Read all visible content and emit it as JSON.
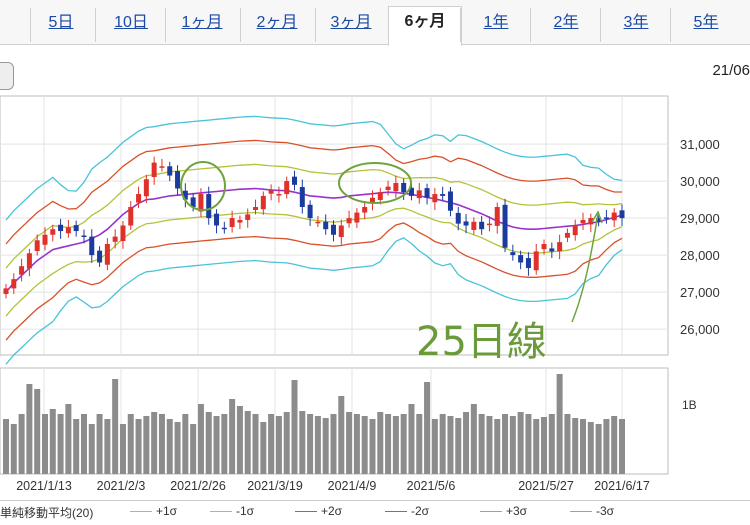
{
  "tabs": [
    {
      "label": "5日",
      "active": false
    },
    {
      "label": "10日",
      "active": false
    },
    {
      "label": "1ヶ月",
      "active": false
    },
    {
      "label": "2ヶ月",
      "active": false
    },
    {
      "label": "3ヶ月",
      "active": false
    },
    {
      "label": "6ヶ月",
      "active": true
    },
    {
      "label": "1年",
      "active": false
    },
    {
      "label": "2年",
      "active": false
    },
    {
      "label": "3年",
      "active": false
    },
    {
      "label": "5年",
      "active": false
    }
  ],
  "header_date": "21/06",
  "annotation": {
    "text": "25日線",
    "color": "#6a9a3a"
  },
  "legend": [
    {
      "label": "単純移動平均(20)",
      "color": "#9932cc"
    },
    {
      "label": "+1σ",
      "color": "#b5c23a"
    },
    {
      "label": "-1σ",
      "color": "#b5c23a"
    },
    {
      "label": "+2σ",
      "color": "#d9502a"
    },
    {
      "label": "-2σ",
      "color": "#d9502a"
    },
    {
      "label": "+3σ",
      "color": "#49c3d8"
    },
    {
      "label": "-3σ",
      "color": "#49c3d8"
    }
  ],
  "chart_data": {
    "type": "candlestick",
    "price_axis": {
      "ticks": [
        26000,
        27000,
        28000,
        29000,
        30000,
        31000
      ],
      "tick_labels": [
        "26,000",
        "27,000",
        "28,000",
        "29,000",
        "30,000",
        "31,000"
      ],
      "range": [
        25300,
        32300
      ]
    },
    "volume_axis": {
      "tick_label": "1B"
    },
    "x_tick_labels": [
      "2021/1/13",
      "2021/2/3",
      "2021/2/26",
      "2021/3/19",
      "2021/4/9",
      "2021/5/6",
      "2021/5/27",
      "2021/6/17"
    ],
    "up_color": "#e0302a",
    "down_color": "#1c3b9e",
    "series_sma": [
      27000,
      27250,
      27450,
      27650,
      27850,
      28000,
      28150,
      28200,
      28250,
      28300,
      28350,
      28450,
      28550,
      28700,
      28900,
      29100,
      29250,
      29400,
      29500,
      29520,
      29560,
      29600,
      29620,
      29640,
      29660,
      29680,
      29700,
      29720,
      29740,
      29760,
      29780,
      29790,
      29800,
      29780,
      29760,
      29750,
      29740,
      29700,
      29650,
      29600,
      29580,
      29560,
      29540,
      29560,
      29600,
      29620,
      29640,
      29660,
      29680,
      29700,
      29690,
      29670,
      29640,
      29600,
      29560,
      29520,
      29470,
      29420,
      29360,
      29280,
      29200,
      29120,
      29020,
      28920,
      28830,
      28760,
      28720,
      28700,
      28700,
      28720,
      28740,
      28760,
      28780,
      28800,
      28830,
      28870,
      28900,
      28960,
      29020,
      29080
    ],
    "closes": [
      27100,
      27350,
      27700,
      28050,
      28400,
      28550,
      28700,
      28650,
      28750,
      28650,
      28500,
      28000,
      27800,
      28300,
      28500,
      28800,
      29300,
      29650,
      30050,
      30500,
      30400,
      30150,
      29800,
      29500,
      29300,
      29650,
      29000,
      28800,
      28700,
      29000,
      28950,
      29100,
      29300,
      29600,
      29750,
      29650,
      30000,
      29900,
      29300,
      29000,
      28900,
      28700,
      28550,
      28800,
      29000,
      29150,
      29300,
      29550,
      29700,
      29850,
      29950,
      29700,
      29600,
      29750,
      29550,
      29650,
      29600,
      29200,
      28850,
      28800,
      28900,
      28700,
      28850,
      29300,
      28200,
      28000,
      27800,
      27650,
      28100,
      28300,
      28100,
      28350,
      28600,
      28800,
      28950,
      29000,
      28900,
      29000,
      29150,
      29000
    ],
    "volume_rel": [
      0.55,
      0.5,
      0.6,
      0.9,
      0.85,
      0.6,
      0.65,
      0.6,
      0.7,
      0.55,
      0.6,
      0.5,
      0.6,
      0.55,
      0.95,
      0.5,
      0.6,
      0.55,
      0.58,
      0.62,
      0.6,
      0.55,
      0.52,
      0.6,
      0.5,
      0.7,
      0.62,
      0.58,
      0.6,
      0.75,
      0.68,
      0.63,
      0.6,
      0.52,
      0.6,
      0.58,
      0.62,
      0.94,
      0.63,
      0.6,
      0.58,
      0.56,
      0.6,
      0.78,
      0.62,
      0.6,
      0.58,
      0.55,
      0.62,
      0.6,
      0.58,
      0.6,
      0.7,
      0.6,
      0.92,
      0.55,
      0.6,
      0.58,
      0.56,
      0.62,
      0.7,
      0.6,
      0.58,
      0.55,
      0.6,
      0.58,
      0.62,
      0.6,
      0.55,
      0.57,
      0.6,
      1.0,
      0.6,
      0.56,
      0.55,
      0.52,
      0.5,
      0.55,
      0.58,
      0.55
    ]
  }
}
